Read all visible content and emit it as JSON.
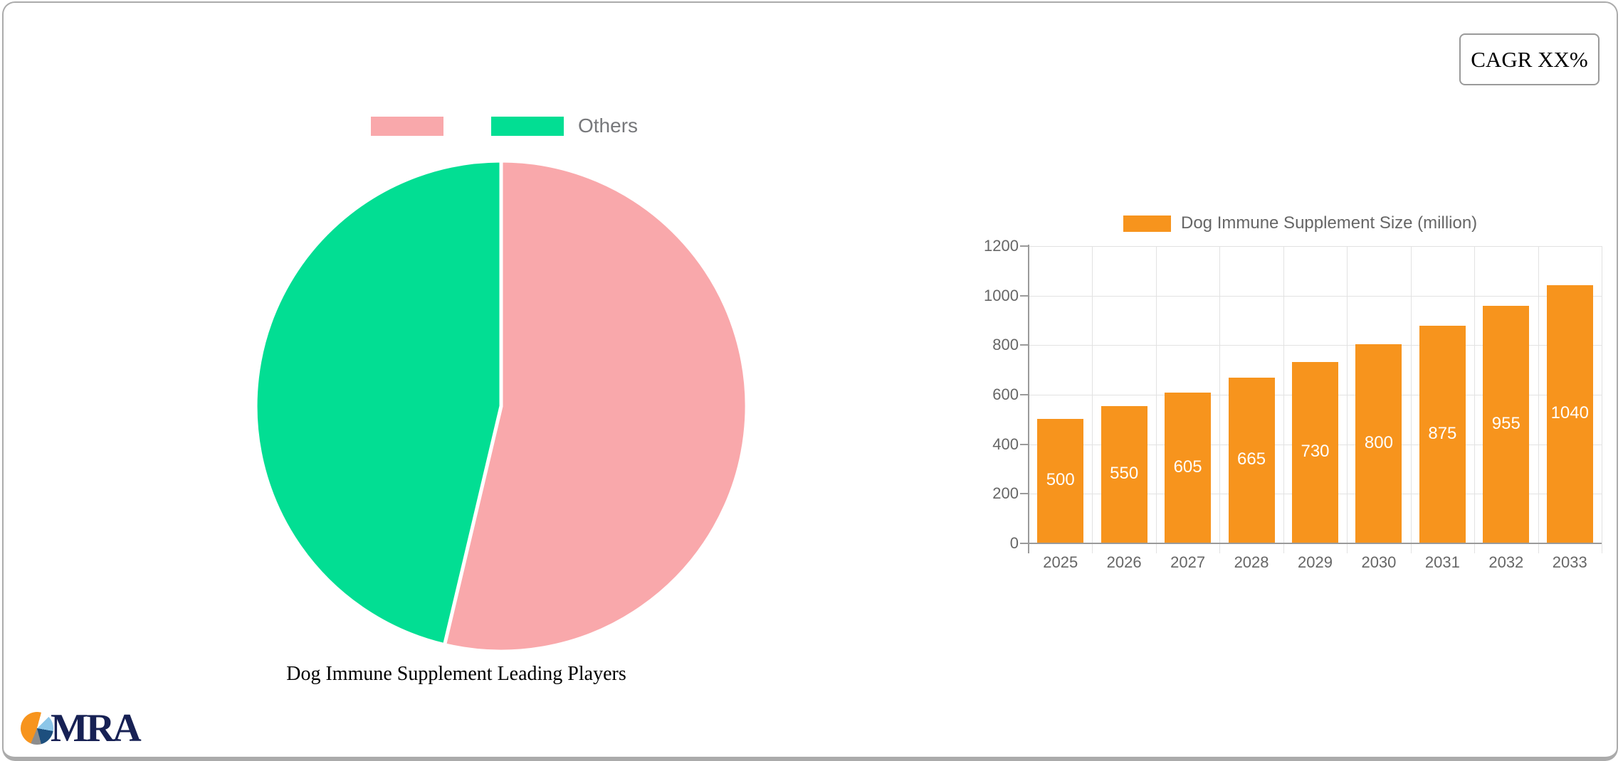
{
  "card": {
    "cagr_label": "CAGR XX%"
  },
  "logo": {
    "text": "MRA",
    "pie_colors": [
      "#f7941d",
      "#ffffff",
      "#8cc6e8",
      "#1d4f7e",
      "#8d8d8d"
    ]
  },
  "pie_section": {
    "title": "Dog Immune Supplement Leading Players",
    "legend": [
      {
        "label": "",
        "color": "#f9a8ab"
      },
      {
        "label": "Others",
        "color": "#02de93"
      }
    ]
  },
  "bar_section": {
    "legend_label": "Dog Immune Supplement Size (million)"
  },
  "chart_data": [
    {
      "type": "pie",
      "title": "Dog Immune Supplement Leading Players",
      "labels": [
        "",
        "Others"
      ],
      "values": [
        53.7,
        46.3
      ],
      "colors": [
        "#f9a8ab",
        "#02de93"
      ],
      "start_angle_deg": 0,
      "direction": "clockwise",
      "slice_border_color": "#ffffff",
      "legend_position": "top"
    },
    {
      "type": "bar",
      "series": [
        {
          "name": "Dog Immune Supplement Size (million)",
          "values": [
            500,
            550,
            605,
            665,
            730,
            800,
            875,
            955,
            1040
          ]
        }
      ],
      "categories": [
        "2025",
        "2026",
        "2027",
        "2028",
        "2029",
        "2030",
        "2031",
        "2032",
        "2033"
      ],
      "bar_color": "#f7941d",
      "value_label_color": "#ffffff",
      "ylim": [
        0,
        1200
      ],
      "ytick_step": 200,
      "yticks": [
        0,
        200,
        400,
        600,
        800,
        1000,
        1200
      ],
      "grid": true,
      "legend_position": "top"
    }
  ]
}
